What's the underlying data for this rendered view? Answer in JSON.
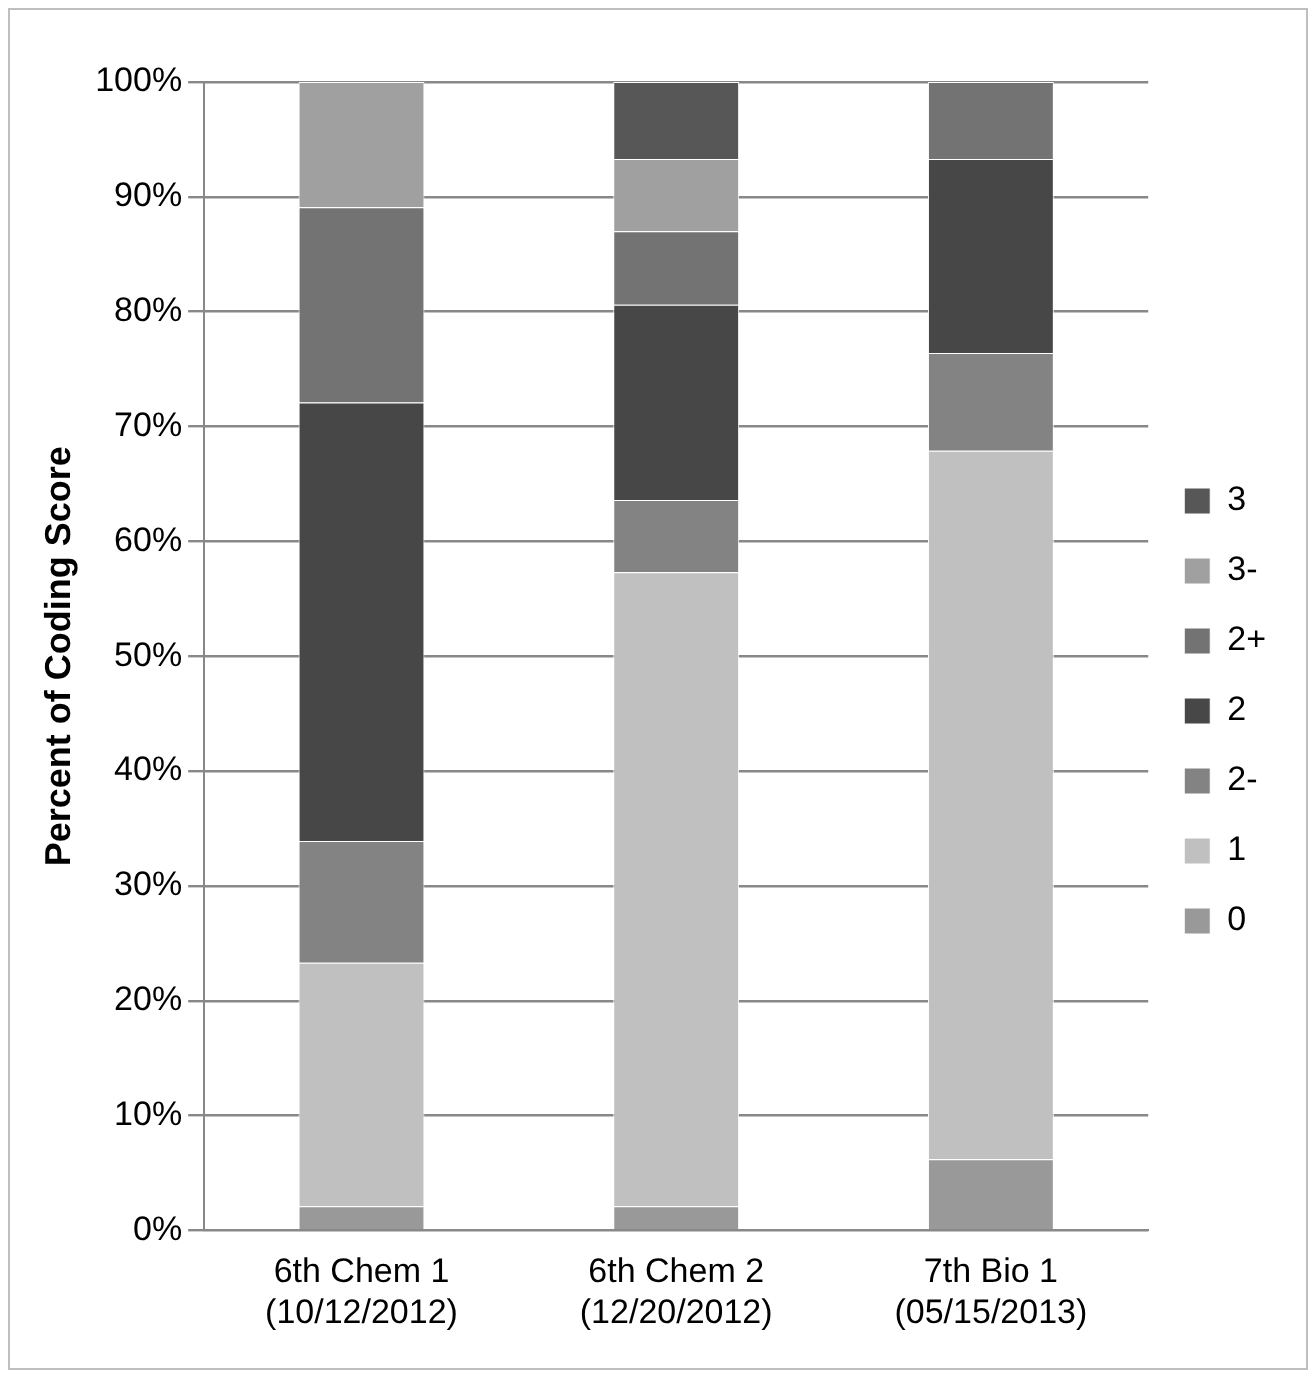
{
  "chart_data": {
    "type": "bar",
    "stacked": true,
    "ylabel": "Percent of Coding Score",
    "categories": [
      "6th Chem 1 (10/12/2012)",
      "6th Chem 2 (12/20/2012)",
      "7th Bio 1 (05/15/2013)"
    ],
    "series": [
      {
        "name": "0",
        "color": "#999999",
        "values": [
          2.1,
          2.1,
          6.2
        ]
      },
      {
        "name": "1",
        "color": "#c0c0c0",
        "values": [
          21.2,
          55.2,
          61.7
        ]
      },
      {
        "name": "2-",
        "color": "#838383",
        "values": [
          10.6,
          6.3,
          8.5
        ]
      },
      {
        "name": "2",
        "color": "#474747",
        "values": [
          38.2,
          17.0,
          16.9
        ]
      },
      {
        "name": "2+",
        "color": "#737373",
        "values": [
          17.0,
          6.4,
          6.7
        ]
      },
      {
        "name": "3-",
        "color": "#a0a0a0",
        "values": [
          10.9,
          6.3,
          0
        ]
      },
      {
        "name": "3",
        "color": "#575757",
        "values": [
          0,
          6.7,
          0
        ]
      }
    ],
    "ylim": [
      0,
      100
    ],
    "yticks": [
      {
        "value": 0,
        "label": "0%"
      },
      {
        "value": 10,
        "label": "10%"
      },
      {
        "value": 20,
        "label": "20%"
      },
      {
        "value": 30,
        "label": "30%"
      },
      {
        "value": 40,
        "label": "40%"
      },
      {
        "value": 50,
        "label": "50%"
      },
      {
        "value": 60,
        "label": "60%"
      },
      {
        "value": 70,
        "label": "70%"
      },
      {
        "value": 80,
        "label": "80%"
      },
      {
        "value": 90,
        "label": "90%"
      },
      {
        "value": 100,
        "label": "100%"
      }
    ],
    "grid": "y",
    "legend": "right"
  }
}
